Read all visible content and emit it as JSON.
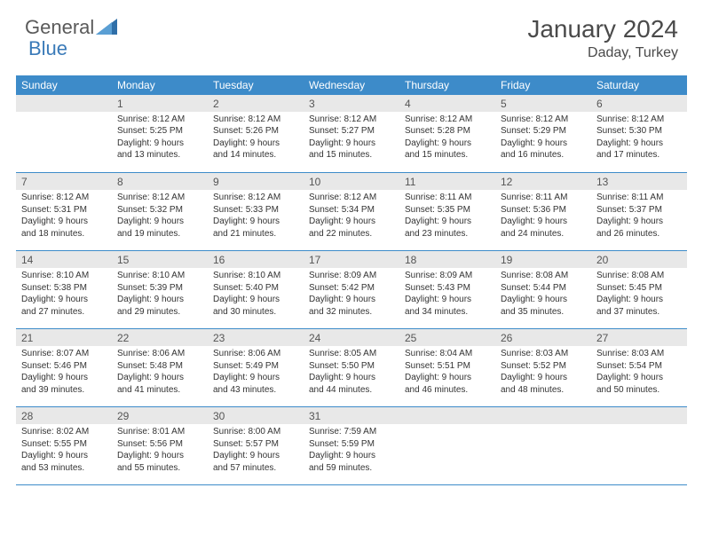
{
  "brand": {
    "first": "General",
    "second": "Blue"
  },
  "title": "January 2024",
  "location": "Daday, Turkey",
  "colors": {
    "header_bg": "#3d8bc9",
    "header_text": "#ffffff",
    "daynum_bg": "#e8e8e8",
    "border": "#3d8bc9",
    "brand_gray": "#5a5a5a",
    "brand_blue": "#3a7ab8",
    "title_color": "#4a4a4a",
    "body_text": "#333333",
    "page_bg": "#ffffff"
  },
  "weekdays": [
    "Sunday",
    "Monday",
    "Tuesday",
    "Wednesday",
    "Thursday",
    "Friday",
    "Saturday"
  ],
  "weeks": [
    [
      {
        "day": "",
        "lines": []
      },
      {
        "day": "1",
        "lines": [
          "Sunrise: 8:12 AM",
          "Sunset: 5:25 PM",
          "Daylight: 9 hours",
          "and 13 minutes."
        ]
      },
      {
        "day": "2",
        "lines": [
          "Sunrise: 8:12 AM",
          "Sunset: 5:26 PM",
          "Daylight: 9 hours",
          "and 14 minutes."
        ]
      },
      {
        "day": "3",
        "lines": [
          "Sunrise: 8:12 AM",
          "Sunset: 5:27 PM",
          "Daylight: 9 hours",
          "and 15 minutes."
        ]
      },
      {
        "day": "4",
        "lines": [
          "Sunrise: 8:12 AM",
          "Sunset: 5:28 PM",
          "Daylight: 9 hours",
          "and 15 minutes."
        ]
      },
      {
        "day": "5",
        "lines": [
          "Sunrise: 8:12 AM",
          "Sunset: 5:29 PM",
          "Daylight: 9 hours",
          "and 16 minutes."
        ]
      },
      {
        "day": "6",
        "lines": [
          "Sunrise: 8:12 AM",
          "Sunset: 5:30 PM",
          "Daylight: 9 hours",
          "and 17 minutes."
        ]
      }
    ],
    [
      {
        "day": "7",
        "lines": [
          "Sunrise: 8:12 AM",
          "Sunset: 5:31 PM",
          "Daylight: 9 hours",
          "and 18 minutes."
        ]
      },
      {
        "day": "8",
        "lines": [
          "Sunrise: 8:12 AM",
          "Sunset: 5:32 PM",
          "Daylight: 9 hours",
          "and 19 minutes."
        ]
      },
      {
        "day": "9",
        "lines": [
          "Sunrise: 8:12 AM",
          "Sunset: 5:33 PM",
          "Daylight: 9 hours",
          "and 21 minutes."
        ]
      },
      {
        "day": "10",
        "lines": [
          "Sunrise: 8:12 AM",
          "Sunset: 5:34 PM",
          "Daylight: 9 hours",
          "and 22 minutes."
        ]
      },
      {
        "day": "11",
        "lines": [
          "Sunrise: 8:11 AM",
          "Sunset: 5:35 PM",
          "Daylight: 9 hours",
          "and 23 minutes."
        ]
      },
      {
        "day": "12",
        "lines": [
          "Sunrise: 8:11 AM",
          "Sunset: 5:36 PM",
          "Daylight: 9 hours",
          "and 24 minutes."
        ]
      },
      {
        "day": "13",
        "lines": [
          "Sunrise: 8:11 AM",
          "Sunset: 5:37 PM",
          "Daylight: 9 hours",
          "and 26 minutes."
        ]
      }
    ],
    [
      {
        "day": "14",
        "lines": [
          "Sunrise: 8:10 AM",
          "Sunset: 5:38 PM",
          "Daylight: 9 hours",
          "and 27 minutes."
        ]
      },
      {
        "day": "15",
        "lines": [
          "Sunrise: 8:10 AM",
          "Sunset: 5:39 PM",
          "Daylight: 9 hours",
          "and 29 minutes."
        ]
      },
      {
        "day": "16",
        "lines": [
          "Sunrise: 8:10 AM",
          "Sunset: 5:40 PM",
          "Daylight: 9 hours",
          "and 30 minutes."
        ]
      },
      {
        "day": "17",
        "lines": [
          "Sunrise: 8:09 AM",
          "Sunset: 5:42 PM",
          "Daylight: 9 hours",
          "and 32 minutes."
        ]
      },
      {
        "day": "18",
        "lines": [
          "Sunrise: 8:09 AM",
          "Sunset: 5:43 PM",
          "Daylight: 9 hours",
          "and 34 minutes."
        ]
      },
      {
        "day": "19",
        "lines": [
          "Sunrise: 8:08 AM",
          "Sunset: 5:44 PM",
          "Daylight: 9 hours",
          "and 35 minutes."
        ]
      },
      {
        "day": "20",
        "lines": [
          "Sunrise: 8:08 AM",
          "Sunset: 5:45 PM",
          "Daylight: 9 hours",
          "and 37 minutes."
        ]
      }
    ],
    [
      {
        "day": "21",
        "lines": [
          "Sunrise: 8:07 AM",
          "Sunset: 5:46 PM",
          "Daylight: 9 hours",
          "and 39 minutes."
        ]
      },
      {
        "day": "22",
        "lines": [
          "Sunrise: 8:06 AM",
          "Sunset: 5:48 PM",
          "Daylight: 9 hours",
          "and 41 minutes."
        ]
      },
      {
        "day": "23",
        "lines": [
          "Sunrise: 8:06 AM",
          "Sunset: 5:49 PM",
          "Daylight: 9 hours",
          "and 43 minutes."
        ]
      },
      {
        "day": "24",
        "lines": [
          "Sunrise: 8:05 AM",
          "Sunset: 5:50 PM",
          "Daylight: 9 hours",
          "and 44 minutes."
        ]
      },
      {
        "day": "25",
        "lines": [
          "Sunrise: 8:04 AM",
          "Sunset: 5:51 PM",
          "Daylight: 9 hours",
          "and 46 minutes."
        ]
      },
      {
        "day": "26",
        "lines": [
          "Sunrise: 8:03 AM",
          "Sunset: 5:52 PM",
          "Daylight: 9 hours",
          "and 48 minutes."
        ]
      },
      {
        "day": "27",
        "lines": [
          "Sunrise: 8:03 AM",
          "Sunset: 5:54 PM",
          "Daylight: 9 hours",
          "and 50 minutes."
        ]
      }
    ],
    [
      {
        "day": "28",
        "lines": [
          "Sunrise: 8:02 AM",
          "Sunset: 5:55 PM",
          "Daylight: 9 hours",
          "and 53 minutes."
        ]
      },
      {
        "day": "29",
        "lines": [
          "Sunrise: 8:01 AM",
          "Sunset: 5:56 PM",
          "Daylight: 9 hours",
          "and 55 minutes."
        ]
      },
      {
        "day": "30",
        "lines": [
          "Sunrise: 8:00 AM",
          "Sunset: 5:57 PM",
          "Daylight: 9 hours",
          "and 57 minutes."
        ]
      },
      {
        "day": "31",
        "lines": [
          "Sunrise: 7:59 AM",
          "Sunset: 5:59 PM",
          "Daylight: 9 hours",
          "and 59 minutes."
        ]
      },
      {
        "day": "",
        "lines": []
      },
      {
        "day": "",
        "lines": []
      },
      {
        "day": "",
        "lines": []
      }
    ]
  ]
}
